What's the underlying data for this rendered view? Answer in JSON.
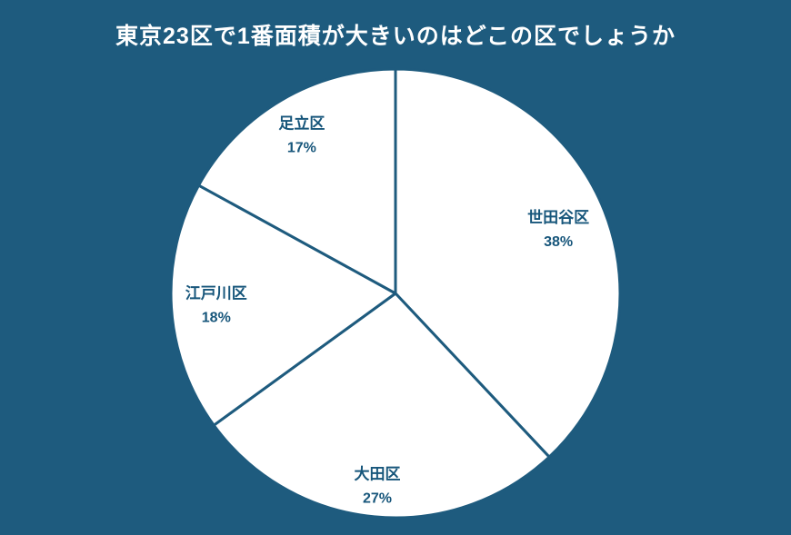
{
  "title": "東京23区で1番面積が大きいのはどこの区でしょうか",
  "colors": {
    "background": "#1E5B7E",
    "pie_fill": "#FFFFFF",
    "divider": "#1E5B7E",
    "title_text": "#FFFFFF",
    "label_text": "#17567B"
  },
  "chart_data": {
    "type": "pie",
    "title": "東京23区で1番面積が大きいのはどこの区でしょうか",
    "start_angle_deg": -90,
    "direction": "clockwise",
    "legend": false,
    "slices": [
      {
        "label": "世田谷区",
        "value": 38,
        "percent_label": "38%",
        "label_r": 0.78
      },
      {
        "label": "大田区",
        "value": 27,
        "percent_label": "27%",
        "label_r": 0.86
      },
      {
        "label": "江戸川区",
        "value": 18,
        "percent_label": "18%",
        "label_r": 0.8
      },
      {
        "label": "足立区",
        "value": 17,
        "percent_label": "17%",
        "label_r": 0.82
      }
    ]
  }
}
